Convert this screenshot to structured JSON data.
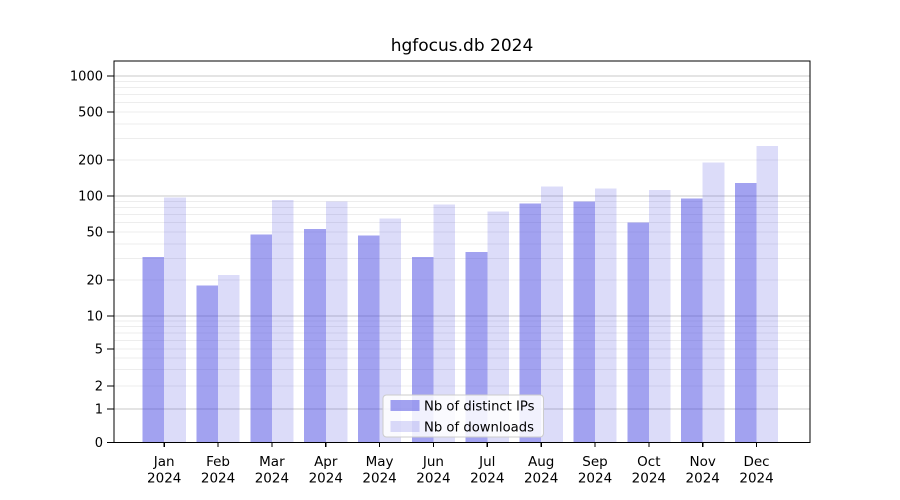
{
  "title": "hgfocus.db 2024",
  "chart_data": {
    "type": "bar",
    "title": "hgfocus.db 2024",
    "categories": [
      "Jan",
      "Feb",
      "Mar",
      "Apr",
      "May",
      "Jun",
      "Jul",
      "Aug",
      "Sep",
      "Oct",
      "Nov",
      "Dec"
    ],
    "category_year": "2024",
    "series": [
      {
        "name": "Nb of distinct IPs",
        "color": "rgba(70,70,225,0.50)",
        "values": [
          31,
          18,
          48,
          53,
          47,
          31,
          34,
          87,
          90,
          60,
          95,
          128
        ]
      },
      {
        "name": "Nb of downloads",
        "color": "rgba(70,70,225,0.19)",
        "values": [
          97,
          22,
          93,
          90,
          65,
          85,
          74,
          120,
          115,
          112,
          190,
          260
        ]
      }
    ],
    "yscale": "symlog",
    "ylim": [
      0,
      1300
    ],
    "yticks": [
      0,
      1,
      2,
      5,
      10,
      20,
      50,
      100,
      200,
      500,
      1000
    ],
    "grid": true,
    "legend_position": "lower center",
    "xlabel": "",
    "ylabel": ""
  },
  "colors": {
    "background": "#ffffff",
    "major_grid": "#c9c9c9",
    "minor_grid": "#ededed",
    "axis": "#000000",
    "text": "#000000",
    "legend_border": "#cccccc",
    "legend_bg": "rgba(255,255,255,0.85)"
  }
}
